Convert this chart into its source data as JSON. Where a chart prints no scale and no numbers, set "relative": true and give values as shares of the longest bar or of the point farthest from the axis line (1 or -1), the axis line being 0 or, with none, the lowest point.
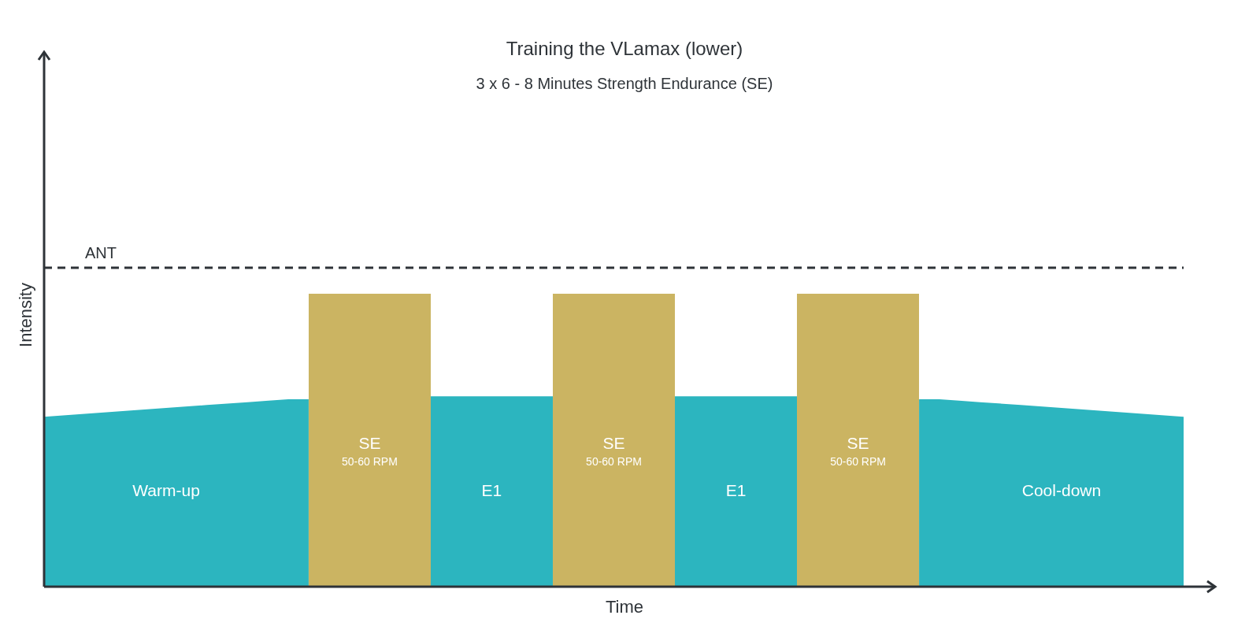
{
  "chart_data": {
    "type": "area",
    "title": "Training the VLamax (lower)",
    "subtitle": "3 x 6 - 8 Minutes Strength Endurance (SE)",
    "xlabel": "Time",
    "ylabel": "Intensity",
    "relative": true,
    "categories": [
      null,
      null,
      null,
      "Warm-up",
      null,
      null,
      null,
      null,
      "SE",
      null,
      null,
      "E1",
      null,
      null,
      "SE",
      null,
      null,
      "E1",
      null,
      null,
      "SE",
      null,
      null,
      null,
      null,
      "Cool-down",
      null,
      null,
      null
    ],
    "series": [
      {
        "color": "#2cb5bf",
        "values": [
          0.58,
          0.59,
          0.6,
          0.61,
          0.62,
          0.63,
          0.64,
          null,
          null,
          null,
          0.65,
          0.65,
          0.65,
          null,
          null,
          null,
          0.65,
          0.65,
          0.65,
          null,
          null,
          null,
          0.64,
          0.63,
          0.62,
          0.61,
          0.6,
          0.59,
          0.58
        ]
      },
      {
        "type": "bar",
        "color": "#cbb462",
        "values": [
          null,
          null,
          null,
          null,
          null,
          null,
          null,
          1,
          1,
          1,
          null,
          null,
          null,
          1,
          1,
          1,
          null,
          null,
          null,
          1,
          1,
          1,
          null,
          null,
          null,
          null,
          null,
          null,
          null
        ]
      }
    ],
    "ref_lines": [
      {
        "axis": "y",
        "value": 1.089,
        "label": "ANT",
        "color": "#2e3338",
        "line_style": "dashed"
      }
    ],
    "annotations": [
      "50-60 RPM",
      "50-60 RPM",
      "50-60 RPM"
    ]
  }
}
